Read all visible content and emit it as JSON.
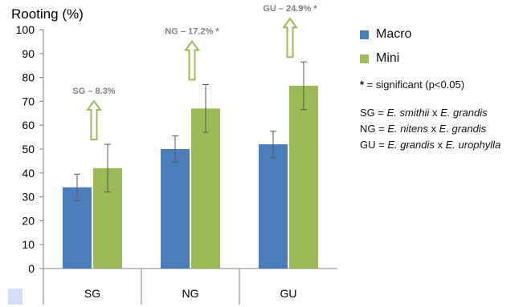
{
  "chart_data": {
    "type": "bar",
    "title": "Rooting (%)",
    "categories": [
      "SG",
      "NG",
      "GU"
    ],
    "ylim": [
      0,
      100
    ],
    "yticks": [
      0,
      10,
      20,
      30,
      40,
      50,
      60,
      70,
      80,
      90,
      100
    ],
    "grid": false,
    "legend_position": "right",
    "series": [
      {
        "name": "Macro",
        "color": "#4a7ebb",
        "values": [
          34,
          50,
          52
        ],
        "errors": [
          5.5,
          5.5,
          5.5
        ]
      },
      {
        "name": "Mini",
        "color": "#9bbb59",
        "values": [
          42,
          67,
          76.5
        ],
        "errors": [
          10,
          10,
          10
        ]
      }
    ],
    "annotations": [
      {
        "category": "SG",
        "text": "SG – 8.3%"
      },
      {
        "category": "NG",
        "text": "NG – 17.2% *"
      },
      {
        "category": "GU",
        "text": "GU – 24.9% *"
      }
    ]
  },
  "legend_notes": {
    "significance_mark": "*",
    "significance_text": " = significant (p<0.05)",
    "abbreviations": [
      {
        "code": "SG",
        "eq": " = ",
        "species1": "E. smithii",
        "x": " x ",
        "species2": "E. grandis"
      },
      {
        "code": "NG",
        "eq": " = ",
        "species1": "E. nitens",
        "x": " x ",
        "species2": "E. grandis"
      },
      {
        "code": "GU",
        "eq": " = ",
        "species1": "E. grandis",
        "x": " x ",
        "species2": "E. urophylla"
      }
    ]
  },
  "colors": {
    "arrow": "#9bbb59",
    "annotation_text": "#7f7f7f",
    "axis": "#7f7f7f"
  }
}
